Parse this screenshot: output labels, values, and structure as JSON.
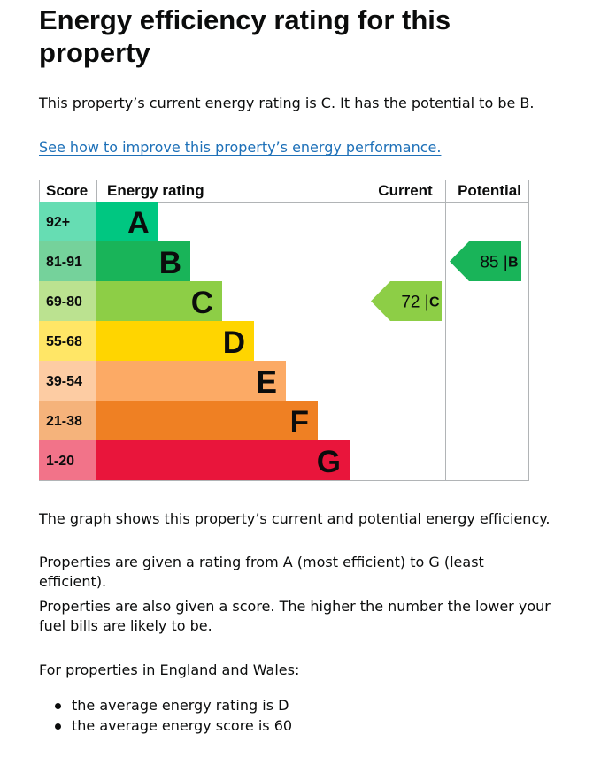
{
  "page": {
    "title": "Energy efficiency rating for this property",
    "intro": "This property’s current energy rating is C. It has the potential to be B.",
    "improve_link": "See how to improve this property’s energy performance.",
    "desc1": "The graph shows this property’s current and potential energy efficiency.",
    "desc2": "Properties are given a rating from A (most efficient) to G (least efficient).",
    "desc3": "Properties are also given a score. The higher the number the lower your fuel bills are likely to be.",
    "desc4": "For properties in England and Wales:",
    "bullets": [
      "the average energy rating is D",
      "the average energy score is 60"
    ]
  },
  "chart_data": {
    "type": "table",
    "headers": {
      "score": "Score",
      "rating": "Energy rating",
      "current": "Current",
      "potential": "Potential"
    },
    "bands": [
      {
        "letter": "A",
        "score": "92+",
        "min": 92,
        "color": "#00c781",
        "score_bg": "#66ddb3",
        "letter_color": "#0b0c0c"
      },
      {
        "letter": "B",
        "score": "81-91",
        "min": 81,
        "color": "#19b459",
        "score_bg": "#75d29b",
        "letter_color": "#0b0c0c"
      },
      {
        "letter": "C",
        "score": "69-80",
        "min": 69,
        "color": "#8dce46",
        "score_bg": "#bbe290",
        "letter_color": "#0b0c0c"
      },
      {
        "letter": "D",
        "score": "55-68",
        "min": 55,
        "color": "#ffd500",
        "score_bg": "#ffe666",
        "letter_color": "#0b0c0c"
      },
      {
        "letter": "E",
        "score": "39-54",
        "min": 39,
        "color": "#fcaa65",
        "score_bg": "#fdcca3",
        "letter_color": "#0b0c0c"
      },
      {
        "letter": "F",
        "score": "21-38",
        "min": 21,
        "color": "#ef8023",
        "score_bg": "#f5b37b",
        "letter_color": "#0b0c0c"
      },
      {
        "letter": "G",
        "score": "1-20",
        "min": 1,
        "color": "#e9153b",
        "score_bg": "#f27389",
        "letter_color": "#0b0c0c"
      }
    ],
    "current": {
      "score": 72,
      "letter": "C",
      "label": "72 | C",
      "color": "#8dce46"
    },
    "potential": {
      "score": 85,
      "letter": "B",
      "label": "85 | B",
      "color": "#19b459"
    }
  }
}
